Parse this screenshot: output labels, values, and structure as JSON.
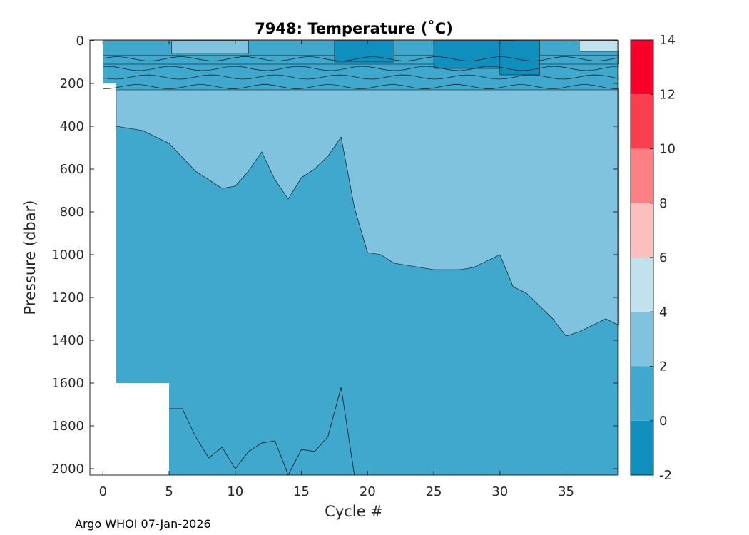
{
  "chart_data": {
    "type": "contour",
    "title": "7948:  Temperature (˚C)",
    "xlabel": "Cycle #",
    "ylabel": "Pressure (dbar)",
    "xlim": [
      -0.5,
      39
    ],
    "ylim": [
      0,
      2030
    ],
    "x_ticks": [
      0,
      5,
      10,
      15,
      20,
      25,
      30,
      35
    ],
    "y_ticks": [
      0,
      200,
      400,
      600,
      800,
      1000,
      1200,
      1400,
      1600,
      1800,
      2000
    ],
    "colorbar": {
      "ticks": [
        -2,
        0,
        2,
        4,
        6,
        8,
        10,
        12,
        14
      ],
      "levels": [
        {
          "from": -2,
          "to": 0,
          "color": "#0e8fbd"
        },
        {
          "from": 0,
          "to": 2,
          "color": "#40a8cc"
        },
        {
          "from": 2,
          "to": 4,
          "color": "#80c3de"
        },
        {
          "from": 4,
          "to": 6,
          "color": "#c1e1ec"
        },
        {
          "from": 6,
          "to": 8,
          "color": "#fbbfbd"
        },
        {
          "from": 8,
          "to": 10,
          "color": "#fa8083"
        },
        {
          "from": 10,
          "to": 12,
          "color": "#f93f4e"
        },
        {
          "from": 12,
          "to": 14,
          "color": "#f8002a"
        }
      ]
    },
    "data_coverage": [
      {
        "cycles": [
          0,
          1
        ],
        "pressure": [
          0,
          200
        ]
      },
      {
        "cycles": [
          1,
          5
        ],
        "pressure": [
          0,
          1600
        ]
      },
      {
        "cycles": [
          5,
          39
        ],
        "pressure": [
          0,
          2030
        ]
      }
    ],
    "isotherm_2C_depth": {
      "cycle": [
        1,
        3,
        5,
        7,
        8,
        9,
        10,
        11,
        12,
        13,
        14,
        15,
        16,
        17,
        18,
        19,
        20,
        21,
        22,
        23,
        25,
        27,
        28,
        30,
        31,
        32,
        34,
        35,
        36,
        38,
        39
      ],
      "pressure": [
        400,
        420,
        480,
        610,
        650,
        690,
        680,
        610,
        520,
        650,
        740,
        640,
        600,
        540,
        450,
        780,
        990,
        1000,
        1040,
        1050,
        1070,
        1070,
        1060,
        1000,
        1150,
        1180,
        1300,
        1380,
        1360,
        1300,
        1330
      ]
    },
    "deep_cold_boundary": {
      "cycle": [
        5,
        6,
        7,
        8,
        9,
        10,
        11,
        12,
        13,
        14,
        15,
        16,
        17,
        18,
        19
      ],
      "pressure": [
        1720,
        1720,
        1850,
        1950,
        1900,
        2000,
        1920,
        1880,
        1870,
        2030,
        1910,
        1920,
        1850,
        1620,
        2030
      ]
    }
  },
  "footer": {
    "credit": "Argo WHOI 07-Jan-2026"
  }
}
